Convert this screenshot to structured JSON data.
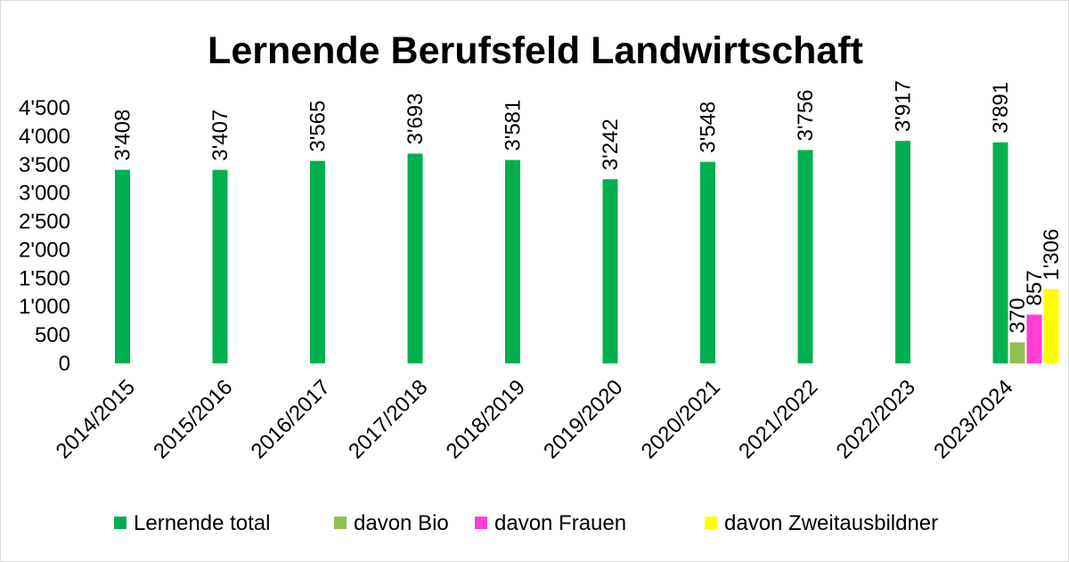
{
  "chart_data": {
    "type": "bar",
    "title": "Lernende Berufsfeld Landwirtschaft",
    "xlabel": "",
    "ylabel": "",
    "ylim": [
      0,
      4500
    ],
    "yticks": [
      "0",
      "500",
      "1'000",
      "1'500",
      "2'000",
      "2'500",
      "3'000",
      "3'500",
      "4'000",
      "4'500"
    ],
    "ytick_values": [
      0,
      500,
      1000,
      1500,
      2000,
      2500,
      3000,
      3500,
      4000,
      4500
    ],
    "categories": [
      "2014/2015",
      "2015/2016",
      "2016/2017",
      "2017/2018",
      "2018/2019",
      "2019/2020",
      "2020/2021",
      "2021/2022",
      "2022/2023",
      "2023/2024"
    ],
    "grid": false,
    "legend_position": "bottom",
    "series": [
      {
        "name": "Lernende total",
        "color": "#00b050",
        "values": [
          3408,
          3407,
          3565,
          3693,
          3581,
          3242,
          3548,
          3756,
          3917,
          3891
        ],
        "labels": [
          "3'408",
          "3'407",
          "3'565",
          "3'693",
          "3'581",
          "3'242",
          "3'548",
          "3'756",
          "3'917",
          "3'891"
        ]
      },
      {
        "name": "davon Bio",
        "color": "#92c050",
        "values": [
          null,
          null,
          null,
          null,
          null,
          null,
          null,
          null,
          null,
          370
        ],
        "labels": [
          null,
          null,
          null,
          null,
          null,
          null,
          null,
          null,
          null,
          "370"
        ]
      },
      {
        "name": "davon Frauen",
        "color": "#ff3fcf",
        "values": [
          null,
          null,
          null,
          null,
          null,
          null,
          null,
          null,
          null,
          857
        ],
        "labels": [
          null,
          null,
          null,
          null,
          null,
          null,
          null,
          null,
          null,
          "857"
        ]
      },
      {
        "name": "davon Zweitausbildner",
        "color": "#ffff00",
        "values": [
          null,
          null,
          null,
          null,
          null,
          null,
          null,
          null,
          null,
          1306
        ],
        "labels": [
          null,
          null,
          null,
          null,
          null,
          null,
          null,
          null,
          null,
          "1'306"
        ]
      }
    ]
  }
}
